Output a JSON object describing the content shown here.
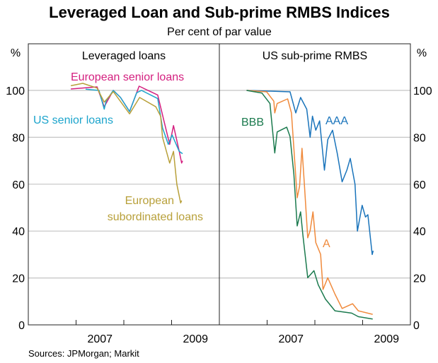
{
  "chart_data": [
    {
      "type": "line",
      "title": "Leveraged Loan and Sub-prime RMBS Indices",
      "subtitle": "Per cent of par value",
      "panel_title": "Leveraged loans",
      "ylabel": "%",
      "ylim": [
        0,
        110
      ],
      "yticks": [
        0,
        20,
        40,
        60,
        80,
        100
      ],
      "xlim": [
        2006,
        2010
      ],
      "xtick_labels": [
        "2007",
        "2009"
      ],
      "grid": true,
      "series": [
        {
          "name": "European senior loans",
          "color": "#d41f7f",
          "x": [
            2006.89,
            2007.44,
            2007.59,
            2007.78,
            2007.93,
            2008.12,
            2008.32,
            2008.71,
            2008.84,
            2008.96,
            2009.04,
            2009.16,
            2009.21,
            2009.23
          ],
          "y": [
            100.6,
            101.5,
            93,
            100,
            97,
            91,
            101.8,
            98,
            87,
            77,
            85,
            74,
            69,
            70
          ]
        },
        {
          "name": "US senior loans",
          "color": "#1ca4cc",
          "x": [
            2007.2,
            2007.48,
            2007.59,
            2007.63,
            2007.78,
            2007.93,
            2008.12,
            2008.27,
            2008.37,
            2008.71,
            2008.81,
            2008.93,
            2009.01,
            2009.16,
            2009.23
          ],
          "y": [
            100.5,
            100,
            92,
            95.5,
            100,
            97,
            91,
            99,
            100,
            96.5,
            84,
            77,
            81,
            74,
            73
          ]
        },
        {
          "name": "European subordinated loans",
          "color": "#b8a03a",
          "x": [
            2006.89,
            2007.14,
            2007.44,
            2007.59,
            2007.78,
            2008.12,
            2008.33,
            2008.67,
            2008.77,
            2008.81,
            2008.96,
            2009.04,
            2009.11,
            2009.19,
            2009.21
          ],
          "y": [
            102,
            103,
            101,
            95,
            99.5,
            90,
            97,
            93,
            89,
            80,
            69,
            74,
            60,
            52,
            53
          ]
        }
      ]
    },
    {
      "type": "line",
      "panel_title": "US sub-prime RMBS",
      "ylabel": "%",
      "ylim": [
        0,
        110
      ],
      "yticks": [
        0,
        20,
        40,
        60,
        80,
        100
      ],
      "xlim": [
        2006,
        2010
      ],
      "xtick_labels": [
        "2007",
        "2009"
      ],
      "grid": true,
      "series": [
        {
          "name": "AAA",
          "color": "#1a74bb",
          "x": [
            2006.57,
            2007.48,
            2007.6,
            2007.7,
            2007.83,
            2007.9,
            2007.95,
            2008.02,
            2008.1,
            2008.2,
            2008.27,
            2008.37,
            2008.47,
            2008.57,
            2008.67,
            2008.74,
            2008.84,
            2008.89,
            2008.99,
            2009.06,
            2009.11,
            2009.2,
            2009.22
          ],
          "y": [
            100,
            99.4,
            90.4,
            97,
            92,
            80,
            89,
            83,
            87,
            66,
            79,
            83,
            73,
            61,
            66,
            71,
            60,
            40,
            51,
            46,
            47,
            30,
            31.6
          ]
        },
        {
          "name": "A",
          "color": "#f08a3c",
          "x": [
            2006.57,
            2006.99,
            2007.14,
            2007.16,
            2007.21,
            2007.43,
            2007.51,
            2007.56,
            2007.63,
            2007.68,
            2007.73,
            2007.78,
            2007.85,
            2007.9,
            2007.96,
            2008.02,
            2008.12,
            2008.17,
            2008.27,
            2008.42,
            2008.57,
            2008.79,
            2008.91,
            2009.21
          ],
          "y": [
            100,
            99.4,
            95.4,
            90.4,
            94.4,
            96.4,
            90.4,
            75.3,
            54.2,
            59.2,
            75.3,
            60.2,
            37.1,
            40.2,
            48.2,
            35.1,
            30.1,
            15.1,
            20.1,
            13.1,
            7,
            9,
            6,
            4.5
          ]
        },
        {
          "name": "BBB",
          "color": "#1b7a4e",
          "x": [
            2006.57,
            2006.89,
            2007.06,
            2007.16,
            2007.21,
            2007.41,
            2007.48,
            2007.56,
            2007.63,
            2007.7,
            2007.75,
            2007.85,
            2007.98,
            2008.07,
            2008.22,
            2008.42,
            2008.77,
            2008.91,
            2009.21
          ],
          "y": [
            100,
            98.9,
            94.4,
            73.3,
            82.3,
            84.3,
            80.3,
            64.3,
            42.2,
            48.2,
            38.2,
            20.1,
            23.1,
            17.1,
            11,
            6,
            5,
            3.5,
            2.5
          ]
        }
      ]
    }
  ],
  "annotations": {
    "eur_senior": "European senior loans",
    "us_senior": "US senior loans",
    "eur_sub_1": "European",
    "eur_sub_2": "subordinated loans",
    "aaa": "AAA",
    "a": "A",
    "bbb": "BBB"
  },
  "source": "Sources: JPMorgan; Markit"
}
